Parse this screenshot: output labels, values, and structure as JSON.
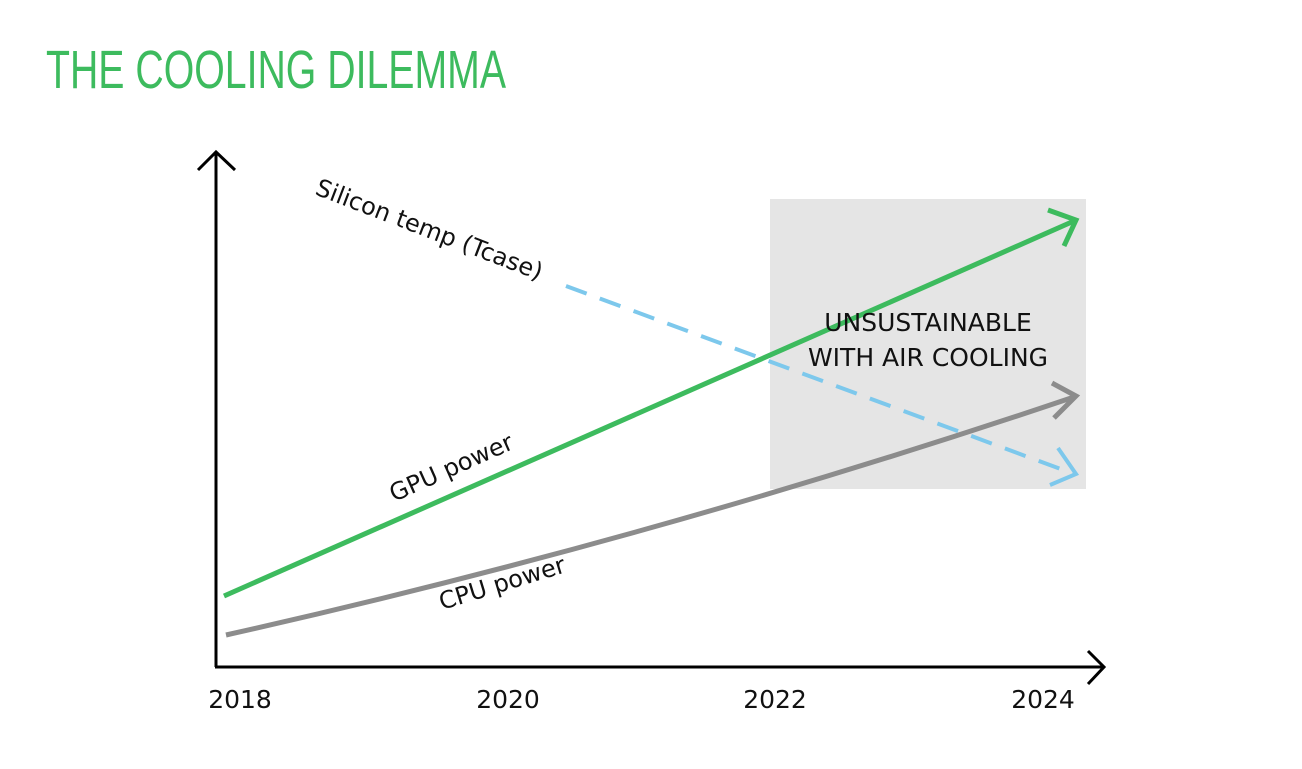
{
  "header": {
    "title": "THE COOLING DILEMMA"
  },
  "x_axis": {
    "labels": [
      "2018",
      "2020",
      "2022",
      "2024"
    ]
  },
  "lines": [
    {
      "label": "GPU power"
    },
    {
      "label": "CPU power"
    },
    {
      "label": "Silicon temp (Tcase)"
    }
  ],
  "zone": {
    "label_lines": [
      "UNSUSTAINABLE",
      "WITH AIR COOLING"
    ]
  }
}
